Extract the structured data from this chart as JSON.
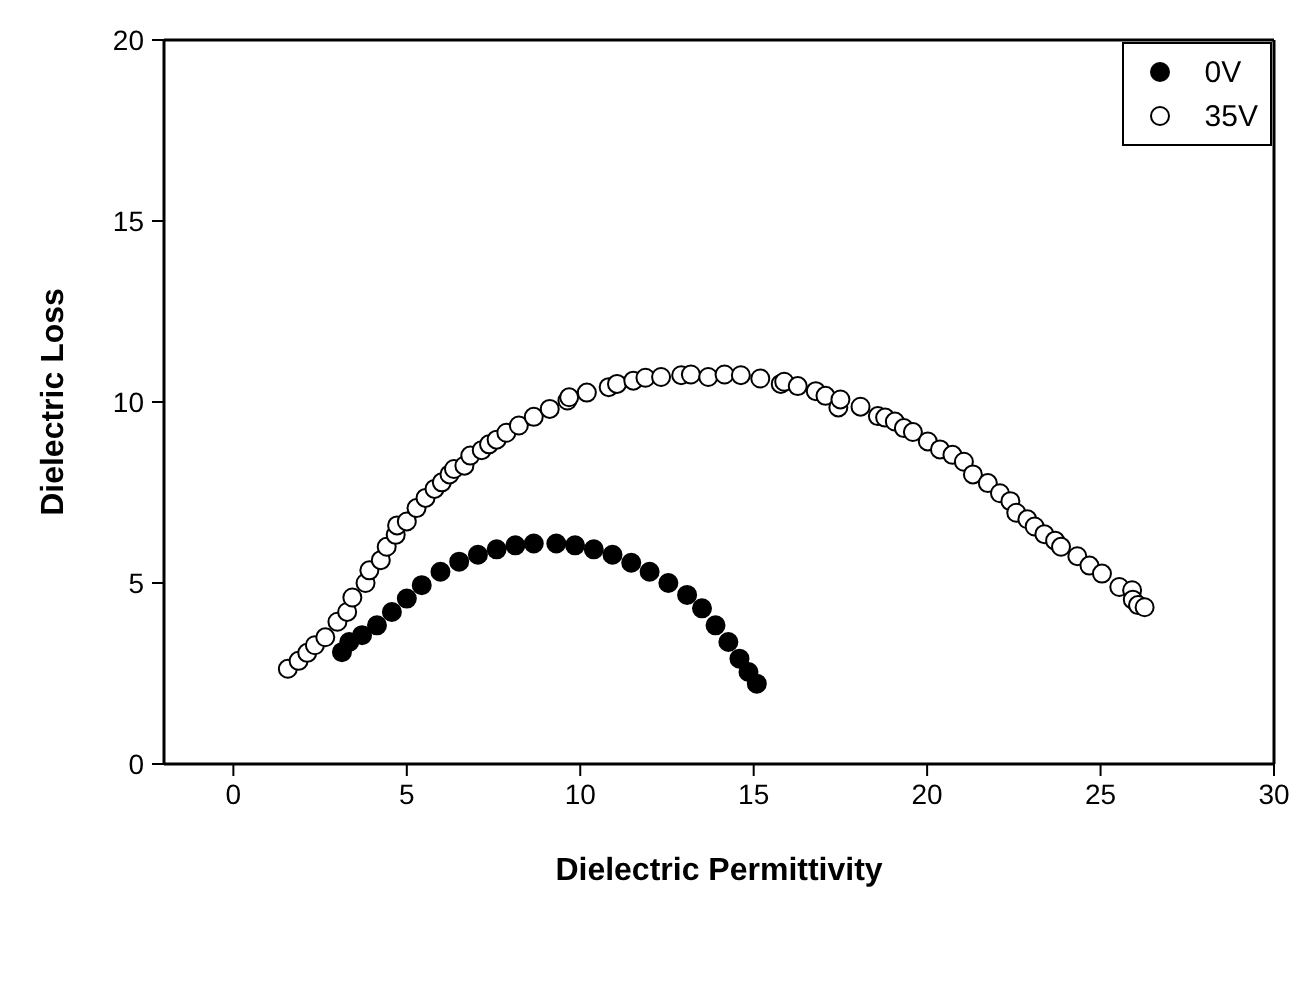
{
  "chart_data": {
    "type": "scatter",
    "xlabel": "Dielectric Permittivity",
    "ylabel": "Dielectric Loss",
    "xlim": [
      -2,
      30
    ],
    "xticks": [
      0,
      5,
      10,
      15,
      20,
      25,
      30
    ],
    "ylim": [
      0,
      20
    ],
    "yticks": [
      0,
      5,
      10,
      15,
      20
    ],
    "legend": "top right",
    "marker": "circle",
    "series": [
      {
        "name": "0V",
        "color": "#000000",
        "x": [
          3.13,
          3.34,
          3.71,
          4.14,
          4.57,
          5.0,
          5.43,
          5.97,
          6.51,
          7.05,
          7.59,
          8.13,
          8.66,
          9.31,
          9.85,
          10.39,
          10.93,
          11.47,
          12.0,
          12.54,
          13.08,
          13.51,
          13.9,
          14.27,
          14.59,
          14.85,
          15.09
        ],
        "values": [
          3.09,
          3.37,
          3.56,
          3.83,
          4.2,
          4.57,
          4.94,
          5.31,
          5.59,
          5.78,
          5.93,
          6.04,
          6.09,
          6.09,
          6.04,
          5.93,
          5.78,
          5.56,
          5.31,
          5.0,
          4.67,
          4.3,
          3.83,
          3.37,
          2.91,
          2.54,
          2.22
        ]
      },
      {
        "name": "35V",
        "color": "#ffffff",
        "x": [
          1.57,
          1.88,
          2.13,
          2.35,
          2.65,
          3.0,
          3.28,
          3.43,
          3.81,
          3.92,
          4.25,
          4.42,
          4.68,
          4.72,
          5.0,
          5.28,
          5.54,
          5.8,
          6.01,
          6.23,
          6.36,
          6.66,
          6.83,
          7.16,
          7.37,
          7.59,
          7.87,
          8.23,
          8.66,
          9.12,
          9.63,
          9.68,
          10.19,
          10.82,
          11.06,
          11.53,
          11.88,
          12.33,
          12.91,
          13.19,
          13.69,
          14.16,
          14.63,
          15.19,
          15.78,
          15.88,
          16.27,
          16.79,
          17.07,
          17.44,
          17.5,
          18.08,
          18.58,
          18.79,
          19.07,
          19.33,
          19.59,
          20.02,
          20.37,
          20.73,
          21.06,
          21.32,
          21.75,
          22.1,
          22.4,
          22.57,
          22.89,
          23.1,
          23.38,
          23.69,
          23.86,
          24.33,
          24.68,
          25.04,
          25.54,
          25.91,
          25.93,
          26.08,
          26.27
        ],
        "values": [
          2.63,
          2.85,
          3.07,
          3.28,
          3.5,
          3.93,
          4.2,
          4.6,
          5.0,
          5.35,
          5.63,
          6.0,
          6.33,
          6.59,
          6.7,
          7.07,
          7.35,
          7.6,
          7.78,
          8.0,
          8.15,
          8.24,
          8.52,
          8.67,
          8.83,
          8.96,
          9.15,
          9.35,
          9.59,
          9.81,
          10.04,
          10.13,
          10.26,
          10.41,
          10.5,
          10.59,
          10.67,
          10.69,
          10.74,
          10.76,
          10.69,
          10.76,
          10.74,
          10.65,
          10.5,
          10.56,
          10.44,
          10.3,
          10.17,
          9.85,
          10.07,
          9.87,
          9.61,
          9.57,
          9.46,
          9.28,
          9.17,
          8.91,
          8.69,
          8.54,
          8.35,
          8.0,
          7.76,
          7.48,
          7.26,
          6.94,
          6.76,
          6.56,
          6.35,
          6.17,
          6.0,
          5.74,
          5.48,
          5.26,
          4.89,
          4.8,
          4.54,
          4.39,
          4.33
        ]
      }
    ]
  }
}
